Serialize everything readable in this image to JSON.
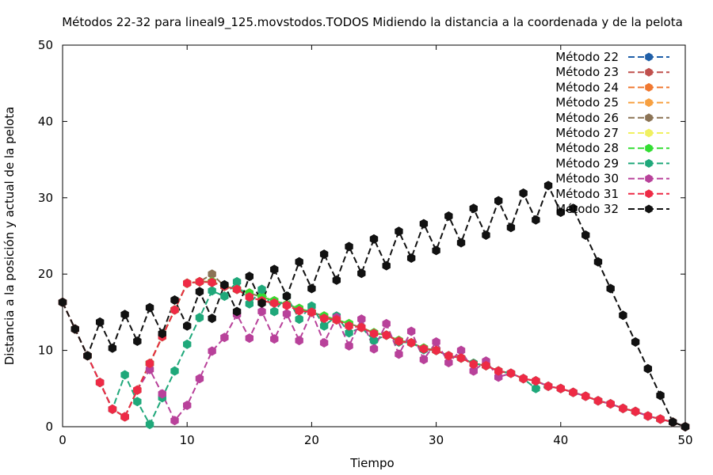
{
  "chart_data": {
    "type": "line",
    "title": "Métodos 22-32 para lineal9_125.movstodos.TODOS Midiendo la distancia a la coordenada y de la pelota",
    "xlabel": "Tiempo",
    "ylabel": "Distancia a la posición y actual de la pelota",
    "xlim": [
      0,
      50
    ],
    "ylim": [
      0,
      50
    ],
    "xticks": [
      0,
      10,
      20,
      30,
      40,
      50
    ],
    "yticks": [
      0,
      10,
      20,
      30,
      40,
      50
    ],
    "grid": false,
    "legend_position": "top-right",
    "x": [
      0,
      1,
      2,
      3,
      4,
      5,
      6,
      7,
      8,
      9,
      10,
      11,
      12,
      13,
      14,
      15,
      16,
      17,
      18,
      19,
      20,
      21,
      22,
      23,
      24,
      25,
      26,
      27,
      28,
      29,
      30,
      31,
      32,
      33,
      34,
      35,
      36,
      37,
      38,
      39,
      40,
      41,
      42,
      43,
      44,
      45,
      46,
      47,
      48,
      49,
      50
    ],
    "series": [
      {
        "name": "Método 22",
        "color": "#1f5fa8",
        "values": [
          16.3,
          12.8,
          9.3,
          5.8,
          2.3,
          1.3,
          4.8,
          8.3,
          11.8,
          15.3,
          18.8,
          19.0,
          19.0,
          18.4,
          18.0,
          17.5,
          17.0,
          16.5,
          16.0,
          15.5,
          15.0,
          14.5,
          14.0,
          13.5,
          13.0,
          12.3,
          12.0,
          11.3,
          11.0,
          10.3,
          10.0,
          9.3,
          9.0,
          8.3,
          8.0,
          7.3,
          7.0,
          6.3,
          6.0,
          5.3,
          5.0,
          4.5,
          4.0,
          3.4,
          3.0,
          2.4,
          2.0,
          1.4,
          1.0,
          0.6,
          0.0
        ]
      },
      {
        "name": "Método 23",
        "color": "#c0504d",
        "values": [
          16.3,
          12.8,
          9.3,
          5.8,
          2.3,
          1.3,
          4.8,
          8.3,
          11.8,
          15.3,
          18.8,
          19.0,
          19.0,
          18.4,
          18.0,
          17.5,
          17.0,
          16.5,
          16.0,
          15.5,
          15.0,
          14.5,
          14.0,
          13.5,
          13.0,
          12.3,
          12.0,
          11.3,
          11.0,
          10.3,
          10.0,
          9.3,
          9.0,
          8.3,
          8.0,
          7.3,
          7.0,
          6.3,
          6.0,
          5.3,
          5.0,
          4.5,
          4.0,
          3.4,
          3.0,
          2.4,
          2.0,
          1.4,
          1.0,
          0.6,
          0.0
        ]
      },
      {
        "name": "Método 24",
        "color": "#f07830",
        "values": [
          16.3,
          12.8,
          9.3,
          5.8,
          2.3,
          1.3,
          4.8,
          8.3,
          11.8,
          15.3,
          18.8,
          19.0,
          19.0,
          18.4,
          18.0,
          17.5,
          17.0,
          16.5,
          16.0,
          15.5,
          15.0,
          14.5,
          14.0,
          13.5,
          13.0,
          12.3,
          12.0,
          11.3,
          11.0,
          10.3,
          10.0,
          9.3,
          9.0,
          8.3,
          8.0,
          7.3,
          7.0,
          6.3,
          6.0,
          5.3,
          5.0,
          4.5,
          4.0,
          3.4,
          3.0,
          2.4,
          2.0,
          1.4,
          1.0,
          0.6,
          0.0
        ]
      },
      {
        "name": "Método 25",
        "color": "#f7a040",
        "values": [
          16.3,
          12.8,
          9.3,
          5.8,
          2.3,
          1.3,
          4.8,
          8.3,
          11.8,
          15.3,
          18.8,
          19.0,
          19.0,
          18.4,
          18.0,
          17.5,
          17.0,
          16.5,
          16.0,
          15.5,
          15.0,
          14.5,
          14.0,
          13.5,
          13.0,
          12.3,
          12.0,
          11.3,
          11.0,
          10.3,
          10.0,
          9.3,
          9.0,
          8.3,
          8.0,
          7.3,
          7.0,
          6.3,
          6.0,
          5.3,
          5.0,
          4.5,
          4.0,
          3.4,
          3.0,
          2.4,
          2.0,
          1.4,
          1.0,
          0.6,
          0.0
        ]
      },
      {
        "name": "Método 26",
        "color": "#8b7355",
        "values": [
          16.3,
          12.8,
          9.3,
          5.8,
          2.3,
          1.3,
          4.8,
          8.3,
          11.8,
          15.3,
          18.8,
          19.0,
          20.0,
          18.4,
          18.0,
          17.5,
          17.0,
          16.5,
          16.0,
          15.5,
          15.0,
          14.5,
          14.0,
          13.5,
          13.0,
          12.3,
          12.0,
          11.3,
          11.0,
          10.3,
          10.0,
          9.3,
          9.0,
          8.3,
          8.0,
          7.3,
          7.0,
          6.3,
          6.0,
          5.3,
          5.0,
          4.5,
          4.0,
          3.4,
          3.0,
          2.4,
          2.0,
          1.4,
          1.0,
          0.6,
          0.0
        ]
      },
      {
        "name": "Método 27",
        "color": "#f0f060",
        "values": [
          16.3,
          12.8,
          9.3,
          5.8,
          2.3,
          1.3,
          4.8,
          8.3,
          11.8,
          15.3,
          18.8,
          19.0,
          19.0,
          18.4,
          18.0,
          17.5,
          17.0,
          16.5,
          16.0,
          15.5,
          15.0,
          14.5,
          14.0,
          13.5,
          13.0,
          12.3,
          12.0,
          11.3,
          11.0,
          10.3,
          10.0,
          9.3,
          9.0,
          8.3,
          8.0,
          7.3,
          7.0,
          6.3,
          6.0,
          5.3,
          5.0,
          4.5,
          4.0,
          3.4,
          3.0,
          2.4,
          2.0,
          1.4,
          1.0,
          0.6,
          0.0
        ]
      },
      {
        "name": "Método 28",
        "color": "#33dd33",
        "values": [
          16.3,
          12.8,
          9.3,
          5.8,
          2.3,
          1.3,
          4.8,
          8.3,
          11.8,
          15.3,
          18.8,
          19.0,
          19.0,
          18.4,
          18.0,
          17.5,
          17.0,
          16.5,
          16.0,
          15.5,
          15.0,
          14.5,
          14.0,
          13.5,
          13.0,
          12.3,
          12.0,
          11.3,
          11.0,
          10.3,
          10.0,
          9.3,
          9.0,
          8.3,
          8.0,
          7.3,
          7.0,
          6.3,
          6.0,
          5.3,
          5.0,
          4.5,
          4.0,
          3.4,
          3.0,
          2.4,
          2.0,
          1.4,
          1.0,
          0.6,
          0.0
        ]
      },
      {
        "name": "Método 29",
        "color": "#1fa87a",
        "values": [
          16.3,
          12.8,
          9.3,
          5.8,
          2.3,
          6.8,
          3.3,
          0.3,
          3.8,
          7.3,
          10.8,
          14.3,
          17.8,
          17.1,
          19.0,
          16.1,
          18.0,
          15.1,
          17.1,
          14.1,
          15.8,
          13.2,
          14.5,
          12.3,
          13.0,
          11.3,
          12.0,
          11.1,
          11.0,
          10.1,
          10.0,
          9.3,
          9.0,
          8.3,
          8.0,
          7.3,
          7.0,
          6.3,
          5.0,
          5.3,
          5.0,
          4.5,
          4.0,
          3.4,
          3.0,
          2.4,
          2.0,
          1.4,
          1.0,
          0.6,
          0.0
        ]
      },
      {
        "name": "Método 30",
        "color": "#b8419a",
        "values": [
          16.3,
          12.8,
          9.3,
          5.8,
          2.3,
          1.3,
          4.8,
          7.5,
          4.3,
          0.8,
          2.8,
          6.3,
          9.9,
          11.7,
          14.7,
          11.6,
          15.1,
          11.5,
          14.8,
          11.3,
          15.0,
          11.0,
          14.3,
          10.6,
          14.1,
          10.2,
          13.5,
          9.5,
          12.5,
          8.8,
          11.1,
          8.4,
          10.0,
          7.3,
          8.6,
          6.5,
          7.0,
          6.3,
          6.0,
          5.3,
          5.0,
          4.5,
          4.0,
          3.4,
          3.0,
          2.4,
          2.0,
          1.4,
          1.0,
          0.6,
          0.0
        ]
      },
      {
        "name": "Método 31",
        "color": "#ee2a45",
        "values": [
          16.3,
          12.8,
          9.3,
          5.8,
          2.3,
          1.3,
          4.8,
          8.3,
          11.8,
          15.3,
          18.8,
          19.0,
          18.9,
          18.4,
          18.0,
          17.0,
          16.5,
          16.2,
          15.9,
          15.2,
          15.0,
          14.2,
          14.0,
          13.2,
          13.0,
          12.2,
          12.0,
          11.2,
          11.0,
          10.2,
          10.0,
          9.3,
          9.0,
          8.2,
          8.0,
          7.3,
          7.0,
          6.3,
          6.0,
          5.3,
          5.0,
          4.5,
          4.0,
          3.4,
          3.0,
          2.4,
          2.0,
          1.4,
          1.0,
          0.6,
          0.0
        ]
      },
      {
        "name": "Método 32",
        "color": "#111111",
        "values": [
          16.3,
          12.8,
          9.3,
          13.7,
          10.3,
          14.7,
          11.2,
          15.6,
          12.2,
          16.6,
          13.2,
          17.7,
          14.2,
          18.6,
          15.1,
          19.7,
          16.2,
          20.6,
          17.1,
          21.6,
          18.1,
          22.6,
          19.2,
          23.6,
          20.1,
          24.6,
          21.1,
          25.6,
          22.1,
          26.6,
          23.1,
          27.6,
          24.1,
          28.6,
          25.1,
          29.6,
          26.1,
          30.6,
          27.1,
          31.6,
          28.1,
          28.6,
          25.1,
          21.6,
          18.1,
          14.6,
          11.1,
          7.6,
          4.1,
          0.6,
          0.0
        ]
      }
    ]
  }
}
